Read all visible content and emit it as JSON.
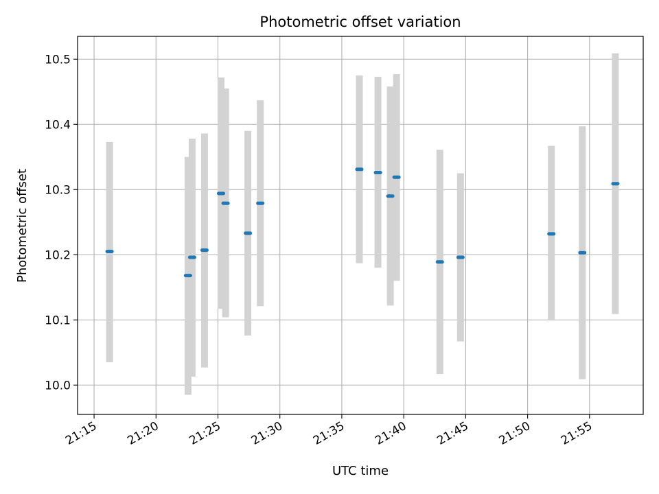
{
  "chart_data": {
    "type": "scatter",
    "title": "Photometric offset variation",
    "xlabel": "UTC time",
    "ylabel": "Photometric offset",
    "x_axis_type": "time",
    "xlim": [
      "21:13:40",
      "21:59:20"
    ],
    "ylim": [
      9.955,
      10.535
    ],
    "x_ticks": [
      "21:15",
      "21:20",
      "21:25",
      "21:30",
      "21:35",
      "21:40",
      "21:45",
      "21:50",
      "21:55"
    ],
    "y_ticks": [
      "10.0",
      "10.1",
      "10.2",
      "10.3",
      "10.4",
      "10.5"
    ],
    "grid": true,
    "marker_color": "#1f77b4",
    "errorbar_color": "#d3d3d3",
    "points": [
      {
        "t": "21:16:15",
        "y": 10.205,
        "err_low": 10.035,
        "err_high": 10.373
      },
      {
        "t": "21:22:35",
        "y": 10.168,
        "err_low": 9.985,
        "err_high": 10.35
      },
      {
        "t": "21:22:55",
        "y": 10.196,
        "err_low": 10.013,
        "err_high": 10.378
      },
      {
        "t": "21:23:55",
        "y": 10.207,
        "err_low": 10.027,
        "err_high": 10.386
      },
      {
        "t": "21:25:15",
        "y": 10.294,
        "err_low": 10.117,
        "err_high": 10.472
      },
      {
        "t": "21:25:37",
        "y": 10.279,
        "err_low": 10.104,
        "err_high": 10.455
      },
      {
        "t": "21:27:25",
        "y": 10.233,
        "err_low": 10.076,
        "err_high": 10.39
      },
      {
        "t": "21:28:25",
        "y": 10.279,
        "err_low": 10.121,
        "err_high": 10.437
      },
      {
        "t": "21:36:25",
        "y": 10.331,
        "err_low": 10.187,
        "err_high": 10.475
      },
      {
        "t": "21:37:55",
        "y": 10.326,
        "err_low": 10.18,
        "err_high": 10.473
      },
      {
        "t": "21:38:55",
        "y": 10.29,
        "err_low": 10.122,
        "err_high": 10.458
      },
      {
        "t": "21:39:25",
        "y": 10.319,
        "err_low": 10.16,
        "err_high": 10.477
      },
      {
        "t": "21:42:55",
        "y": 10.189,
        "err_low": 10.017,
        "err_high": 10.361
      },
      {
        "t": "21:44:35",
        "y": 10.196,
        "err_low": 10.067,
        "err_high": 10.325
      },
      {
        "t": "21:51:55",
        "y": 10.232,
        "err_low": 10.099,
        "err_high": 10.367
      },
      {
        "t": "21:54:25",
        "y": 10.203,
        "err_low": 10.009,
        "err_high": 10.397
      },
      {
        "t": "21:57:05",
        "y": 10.309,
        "err_low": 10.109,
        "err_high": 10.509
      }
    ]
  }
}
